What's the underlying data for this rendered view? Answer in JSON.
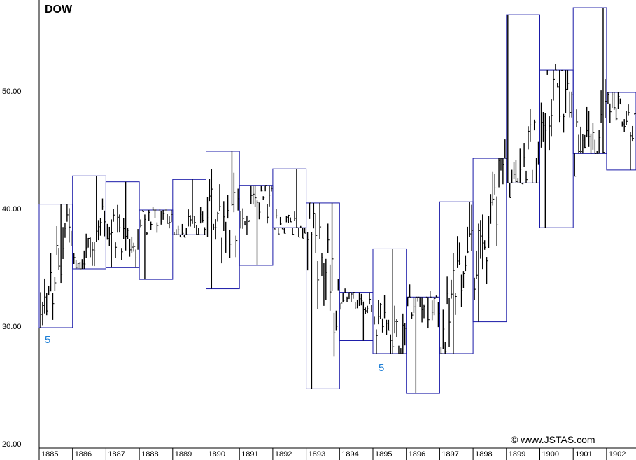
{
  "chart_data": {
    "type": "bar",
    "subtype": "ohlc-range-bars-with-yearly-boxes",
    "title": "DOW",
    "copyright": "© www.JSTAS.com",
    "ylim": [
      20,
      58
    ],
    "y_ticks": [
      "20.00",
      "30.00",
      "40.00",
      "50.00"
    ],
    "years": [
      "1885",
      "1886",
      "1887",
      "1888",
      "1889",
      "1890",
      "1891",
      "1892",
      "1893",
      "1894",
      "1895",
      "1896",
      "1897",
      "1898",
      "1899",
      "1900",
      "1901",
      "1902"
    ],
    "yearly_ranges": [
      {
        "year": "1885",
        "low": 30.0,
        "high": 40.5
      },
      {
        "year": "1886",
        "low": 35.0,
        "high": 42.9
      },
      {
        "year": "1887",
        "low": 35.1,
        "high": 42.4
      },
      {
        "year": "1888",
        "low": 34.1,
        "high": 40.0
      },
      {
        "year": "1889",
        "low": 37.9,
        "high": 42.6
      },
      {
        "year": "1890",
        "low": 33.3,
        "high": 45.0
      },
      {
        "year": "1891",
        "low": 35.3,
        "high": 42.1
      },
      {
        "year": "1892",
        "low": 38.5,
        "high": 43.5
      },
      {
        "year": "1893",
        "low": 24.8,
        "high": 40.6
      },
      {
        "year": "1894",
        "low": 28.9,
        "high": 33.0
      },
      {
        "year": "1895",
        "low": 27.8,
        "high": 36.7
      },
      {
        "year": "1896",
        "low": 24.4,
        "high": 32.6
      },
      {
        "year": "1897",
        "low": 27.8,
        "high": 40.7
      },
      {
        "year": "1898",
        "low": 30.5,
        "high": 44.4
      },
      {
        "year": "1899",
        "low": 42.3,
        "high": 56.6
      },
      {
        "year": "1900",
        "low": 38.5,
        "high": 51.9
      },
      {
        "year": "1901",
        "low": 44.8,
        "high": 57.2
      },
      {
        "year": "1902",
        "low": 43.4,
        "high": 50.0
      }
    ],
    "annotations": [
      {
        "text": "5",
        "year": "1885",
        "y": 29.0
      },
      {
        "text": "5",
        "year": "1895",
        "y": 26.6
      }
    ],
    "grid": false,
    "legend": "none"
  },
  "colors": {
    "bars": "#000000",
    "boxes": "#1a1aa8",
    "wave_label": "#1e7fd6",
    "axis": "#000000"
  }
}
